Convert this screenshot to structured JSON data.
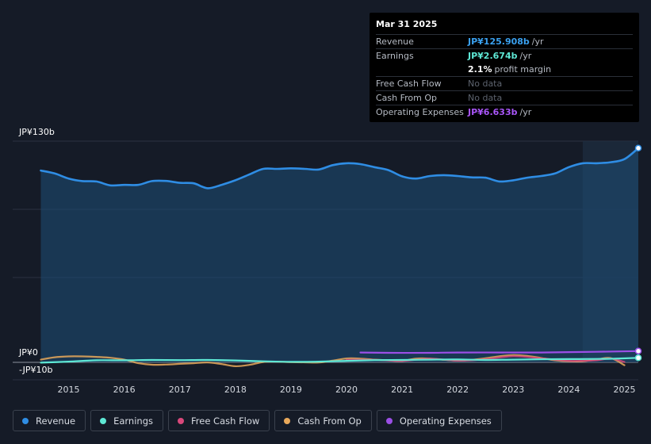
{
  "tooltip": {
    "date": "Mar 31 2025",
    "rows": {
      "revenue": {
        "label": "Revenue",
        "value": "JP¥125.908b",
        "suffix": "/yr",
        "color": "#3aa1f0"
      },
      "earnings": {
        "label": "Earnings",
        "value": "JP¥2.674b",
        "suffix": "/yr",
        "color": "#5ee8d5"
      },
      "margin": {
        "value": "2.1%",
        "suffix": "profit margin"
      },
      "fcf": {
        "label": "Free Cash Flow",
        "value": "No data"
      },
      "cfo": {
        "label": "Cash From Op",
        "value": "No data"
      },
      "opex": {
        "label": "Operating Expenses",
        "value": "JP¥6.633b",
        "suffix": "/yr",
        "color": "#a855f7"
      }
    }
  },
  "legend": [
    {
      "label": "Revenue",
      "color": "#2f8de4"
    },
    {
      "label": "Earnings",
      "color": "#5ee8d5"
    },
    {
      "label": "Free Cash Flow",
      "color": "#d9487b"
    },
    {
      "label": "Cash From Op",
      "color": "#e8a85a"
    },
    {
      "label": "Operating Expenses",
      "color": "#9b4fe6"
    }
  ],
  "chart_data": {
    "type": "line",
    "y_tick_labels": [
      "JP¥130b",
      "JP¥0",
      "-JP¥10b"
    ],
    "ylim": [
      -10,
      130
    ],
    "x_tick_labels": [
      "2015",
      "2016",
      "2017",
      "2018",
      "2019",
      "2020",
      "2021",
      "2022",
      "2023",
      "2024",
      "2025"
    ],
    "xlim": [
      2014.45,
      2025.25
    ],
    "highlight_from": 2024.25,
    "grid": true,
    "series": [
      {
        "name": "Revenue",
        "color": "#2f8de4",
        "fill": true,
        "points": [
          [
            2014.5,
            112.7
          ],
          [
            2014.75,
            111
          ],
          [
            2015.0,
            108
          ],
          [
            2015.25,
            106.5
          ],
          [
            2015.5,
            106.3
          ],
          [
            2015.75,
            104
          ],
          [
            2016.0,
            104.3
          ],
          [
            2016.25,
            104.3
          ],
          [
            2016.5,
            106.5
          ],
          [
            2016.75,
            106.6
          ],
          [
            2017.0,
            105.5
          ],
          [
            2017.25,
            105.2
          ],
          [
            2017.5,
            102.3
          ],
          [
            2017.75,
            104.3
          ],
          [
            2018.0,
            107
          ],
          [
            2018.25,
            110.4
          ],
          [
            2018.5,
            113.7
          ],
          [
            2018.75,
            113.7
          ],
          [
            2019.0,
            114
          ],
          [
            2019.25,
            113.7
          ],
          [
            2019.5,
            113.3
          ],
          [
            2019.75,
            115.9
          ],
          [
            2020.0,
            117
          ],
          [
            2020.25,
            116.5
          ],
          [
            2020.5,
            114.7
          ],
          [
            2020.75,
            113
          ],
          [
            2021.0,
            109.3
          ],
          [
            2021.25,
            108
          ],
          [
            2021.5,
            109.5
          ],
          [
            2021.75,
            110
          ],
          [
            2022.0,
            109.5
          ],
          [
            2022.25,
            108.7
          ],
          [
            2022.5,
            108.5
          ],
          [
            2022.75,
            106.3
          ],
          [
            2023.0,
            107
          ],
          [
            2023.25,
            108.5
          ],
          [
            2023.5,
            109.5
          ],
          [
            2023.75,
            111
          ],
          [
            2024.0,
            114.7
          ],
          [
            2024.25,
            117
          ],
          [
            2024.5,
            117
          ],
          [
            2024.75,
            117.6
          ],
          [
            2025.0,
            119.4
          ],
          [
            2025.25,
            125.9
          ]
        ]
      },
      {
        "name": "Earnings",
        "color": "#5ee8d5",
        "fill": false,
        "points": [
          [
            2014.5,
            -0.2
          ],
          [
            2015.0,
            0.4
          ],
          [
            2015.5,
            1.2
          ],
          [
            2016.0,
            1.2
          ],
          [
            2016.5,
            1.4
          ],
          [
            2017.0,
            1.3
          ],
          [
            2017.5,
            1.4
          ],
          [
            2018.0,
            1.1
          ],
          [
            2018.5,
            0.6
          ],
          [
            2019.0,
            0.3
          ],
          [
            2019.5,
            0.4
          ],
          [
            2020.0,
            0.9
          ],
          [
            2020.5,
            1.3
          ],
          [
            2021.0,
            1.4
          ],
          [
            2021.5,
            1.6
          ],
          [
            2022.0,
            1.7
          ],
          [
            2022.5,
            1.4
          ],
          [
            2023.0,
            1.6
          ],
          [
            2023.5,
            1.8
          ],
          [
            2024.0,
            1.9
          ],
          [
            2024.5,
            2.0
          ],
          [
            2024.75,
            2.1
          ],
          [
            2025.25,
            2.674
          ]
        ]
      },
      {
        "name": "Free Cash Flow",
        "color": "#d9487b",
        "fill": false,
        "points": [
          [
            2020.0,
            1.5
          ],
          [
            2020.5,
            1.5
          ],
          [
            2021.0,
            0.8
          ],
          [
            2021.5,
            2.2
          ],
          [
            2022.0,
            1.0
          ],
          [
            2022.5,
            1.8
          ],
          [
            2023.0,
            3.6
          ],
          [
            2023.5,
            2.4
          ],
          [
            2024.0,
            0.9
          ],
          [
            2024.5,
            1.2
          ],
          [
            2024.75,
            2.3
          ],
          [
            2025.0,
            0.2
          ]
        ]
      },
      {
        "name": "Cash From Op",
        "color": "#e8a85a",
        "fill": false,
        "points": [
          [
            2014.5,
            1.6
          ],
          [
            2014.75,
            3.0
          ],
          [
            2015.0,
            3.5
          ],
          [
            2015.25,
            3.5
          ],
          [
            2015.5,
            3.2
          ],
          [
            2015.75,
            2.7
          ],
          [
            2016.0,
            1.6
          ],
          [
            2016.25,
            -0.5
          ],
          [
            2016.5,
            -1.4
          ],
          [
            2016.75,
            -1.3
          ],
          [
            2017.0,
            -0.9
          ],
          [
            2017.25,
            -0.5
          ],
          [
            2017.5,
            -0.1
          ],
          [
            2017.75,
            -1.0
          ],
          [
            2018.0,
            -2.3
          ],
          [
            2018.25,
            -1.5
          ],
          [
            2018.5,
            0.2
          ],
          [
            2018.75,
            0.4
          ],
          [
            2019.0,
            0.1
          ],
          [
            2019.25,
            0.0
          ],
          [
            2019.5,
            -0.1
          ],
          [
            2019.75,
            1.0
          ],
          [
            2020.0,
            2.3
          ],
          [
            2020.25,
            2.2
          ],
          [
            2020.5,
            1.6
          ],
          [
            2020.75,
            1.2
          ],
          [
            2021.0,
            0.9
          ],
          [
            2021.25,
            2.2
          ],
          [
            2021.5,
            2.2
          ],
          [
            2021.75,
            1.5
          ],
          [
            2022.0,
            1.0
          ],
          [
            2022.25,
            1.5
          ],
          [
            2022.5,
            2.4
          ],
          [
            2022.75,
            3.6
          ],
          [
            2023.0,
            4.3
          ],
          [
            2023.25,
            3.8
          ],
          [
            2023.5,
            2.6
          ],
          [
            2023.75,
            1.2
          ],
          [
            2024.0,
            0.6
          ],
          [
            2024.25,
            0.6
          ],
          [
            2024.5,
            1.7
          ],
          [
            2024.75,
            2.5
          ],
          [
            2025.0,
            -1.7
          ]
        ]
      },
      {
        "name": "Operating Expenses",
        "color": "#9b4fe6",
        "fill": false,
        "points": [
          [
            2020.25,
            5.8
          ],
          [
            2020.75,
            5.6
          ],
          [
            2021.5,
            5.6
          ],
          [
            2022.0,
            5.8
          ],
          [
            2023.0,
            5.8
          ],
          [
            2023.5,
            5.8
          ],
          [
            2024.0,
            6.0
          ],
          [
            2024.5,
            6.2
          ],
          [
            2025.25,
            6.633
          ]
        ]
      }
    ]
  }
}
